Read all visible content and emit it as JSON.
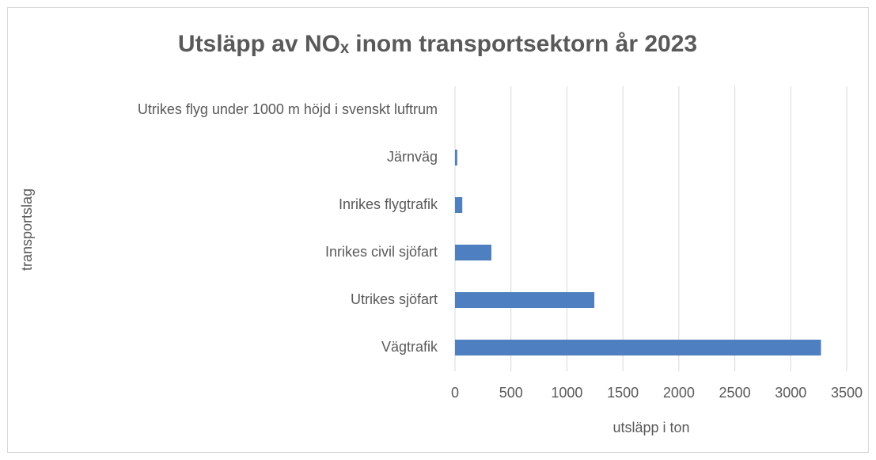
{
  "chart_data": {
    "type": "hbar",
    "title": "Utsläpp av NOₓ inom transportsektorn år 2023",
    "x_label": "utsläpp i ton",
    "y_label": "transportslag",
    "categories": [
      "Utrikes flyg under 1000 m höjd i svenskt luftrum",
      "Järnväg",
      "Inrikes flygtrafik",
      "Inrikes civil sjöfart",
      "Utrikes sjöfart ",
      "Vägtrafik"
    ],
    "values": [
      0,
      20,
      65,
      325,
      1245,
      3270
    ],
    "color": "#4e7fc0",
    "xlim": [
      0,
      3500
    ],
    "xticks": [
      0,
      500,
      1000,
      1500,
      2000,
      2500,
      3000,
      3500
    ],
    "grid": true
  }
}
